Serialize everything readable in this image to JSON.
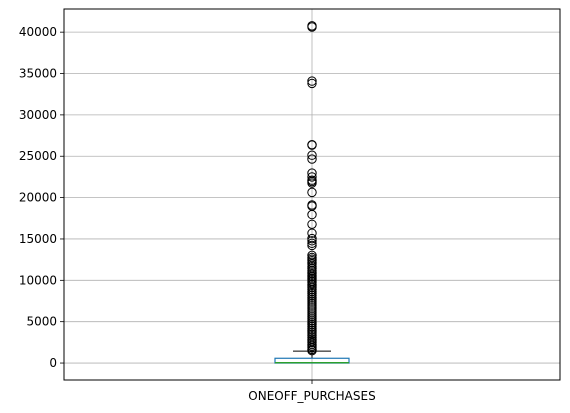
{
  "chart_data": {
    "type": "box",
    "categories": [
      "ONEOFF_PURCHASES"
    ],
    "box": {
      "min": 0,
      "q1": 0,
      "median": 38,
      "q3": 577,
      "whisker_high": 1442
    },
    "outliers": [
      40761,
      40624,
      34087,
      33803,
      26402,
      26344,
      25122,
      24658,
      22965,
      22500,
      22101,
      21943,
      21761,
      20631,
      19108,
      18971,
      17945,
      16777,
      15704,
      15042,
      14780,
      14473,
      14215,
      13019,
      12758,
      12560,
      12375,
      12171,
      11968,
      11652,
      11423,
      11198,
      11005,
      10817,
      10610,
      10437,
      10254,
      10074,
      9884,
      9704,
      9502,
      9301,
      9095,
      8873,
      8652,
      8401,
      8174,
      7946,
      7723,
      7499,
      7261,
      7016,
      6781,
      6544,
      6303,
      6062,
      5821,
      5582,
      5344,
      5108,
      4876,
      4647,
      4418,
      4193,
      3968,
      3742,
      3521,
      3303,
      3087,
      2874,
      2663,
      2452,
      2247,
      2045,
      1845,
      1650,
      1500
    ],
    "yticks": [
      "0",
      "5000",
      "10000",
      "15000",
      "20000",
      "25000",
      "30000",
      "35000",
      "40000"
    ],
    "ylim": [
      -2050,
      42800
    ],
    "grid": true,
    "colors": {
      "box": "#1f77b4",
      "median": "#2ca02c",
      "whisker": "#000000",
      "grid": "#b0b0b0"
    }
  }
}
